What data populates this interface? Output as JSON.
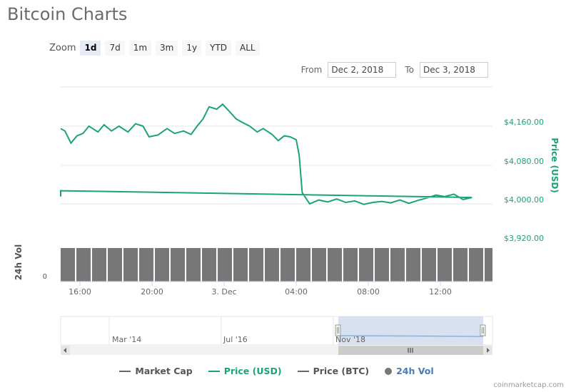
{
  "title": "Bitcoin Charts",
  "zoom": {
    "label": "Zoom",
    "buttons": [
      "1d",
      "7d",
      "1m",
      "3m",
      "1y",
      "YTD",
      "ALL"
    ],
    "selected": "1d"
  },
  "range": {
    "from_label": "From",
    "from_value": "Dec 2, 2018",
    "to_label": "To",
    "to_value": "Dec 3, 2018"
  },
  "colors": {
    "price_usd": "#1aa37a",
    "market_cap": "#666666",
    "price_btc": "#666666",
    "volume": "#777777",
    "navigator": "#cfd8ec"
  },
  "chart_data": {
    "type": "line",
    "y_axis_title": "Price (USD)",
    "y_ticks": [
      "$4,160.00",
      "$4,080.00",
      "$4,000.00",
      "$3,920.00"
    ],
    "ylim": [
      3920,
      4160
    ],
    "x_ticks": [
      "16:00",
      "20:00",
      "3. Dec",
      "04:00",
      "08:00",
      "12:00"
    ],
    "series": [
      {
        "name": "Price (USD)",
        "points": [
          [
            "14:52",
            4155
          ],
          [
            "15:10",
            4150
          ],
          [
            "15:30",
            4125
          ],
          [
            "15:50",
            4140
          ],
          [
            "16:10",
            4145
          ],
          [
            "16:30",
            4160
          ],
          [
            "17:00",
            4148
          ],
          [
            "17:20",
            4163
          ],
          [
            "17:45",
            4150
          ],
          [
            "18:10",
            4160
          ],
          [
            "18:40",
            4148
          ],
          [
            "19:05",
            4165
          ],
          [
            "19:30",
            4160
          ],
          [
            "19:50",
            4138
          ],
          [
            "20:20",
            4142
          ],
          [
            "20:50",
            4155
          ],
          [
            "21:15",
            4145
          ],
          [
            "21:45",
            4150
          ],
          [
            "22:10",
            4143
          ],
          [
            "22:30",
            4160
          ],
          [
            "22:50",
            4175
          ],
          [
            "23:10",
            4200
          ],
          [
            "23:35",
            4195
          ],
          [
            "23:55",
            4205
          ],
          [
            "00:15",
            4192
          ],
          [
            "00:40",
            4175
          ],
          [
            "01:00",
            4168
          ],
          [
            "01:25",
            4160
          ],
          [
            "01:50",
            4148
          ],
          [
            "02:10",
            4155
          ],
          [
            "02:40",
            4143
          ],
          [
            "03:00",
            4130
          ],
          [
            "03:20",
            4140
          ],
          [
            "03:40",
            4138
          ],
          [
            "04:00",
            4132
          ],
          [
            "04:10",
            4100
          ],
          [
            "04:20",
            4023
          ],
          [
            "04:45",
            4000
          ],
          [
            "05:15",
            4008
          ],
          [
            "05:45",
            4004
          ],
          [
            "06:15",
            4010
          ],
          [
            "06:45",
            4003
          ],
          [
            "07:15",
            4006
          ],
          [
            "07:45",
            3999
          ],
          [
            "08:15",
            4003
          ],
          [
            "08:45",
            4005
          ],
          [
            "09:15",
            4002
          ],
          [
            "09:45",
            4008
          ],
          [
            "10:15",
            4001
          ],
          [
            "10:45",
            4007
          ],
          [
            "11:15",
            4012
          ],
          [
            "11:45",
            4018
          ],
          [
            "12:15",
            4015
          ],
          [
            "12:45",
            4020
          ],
          [
            "13:15",
            4009
          ],
          [
            "13:45",
            4013
          ],
          [
            "14:10",
            4027
          ],
          [
            "14:30",
            4015
          ]
        ]
      }
    ],
    "volume": {
      "axis_title": "24h Vol",
      "axis_zero": "0"
    },
    "navigator": {
      "labels": [
        "Mar '14",
        "Jul '16",
        "Nov '18"
      ]
    }
  },
  "legend": [
    {
      "name": "Market Cap",
      "color": "#666666",
      "shape": "line"
    },
    {
      "name": "Price (USD)",
      "color": "#1aa37a",
      "shape": "line"
    },
    {
      "name": "Price (BTC)",
      "color": "#666666",
      "shape": "line"
    },
    {
      "name": "24h Vol",
      "color": "#777777",
      "shape": "dot"
    }
  ],
  "credit": "coinmarketcap.com"
}
